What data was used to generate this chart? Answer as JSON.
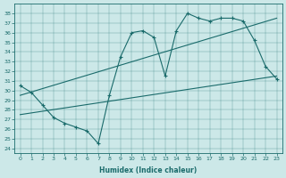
{
  "xlabel": "Humidex (Indice chaleur)",
  "bg_color": "#cce8e8",
  "line_color": "#1a6b6b",
  "xlim": [
    -0.5,
    23.5
  ],
  "ylim": [
    23.5,
    39.0
  ],
  "xticks": [
    0,
    1,
    2,
    3,
    4,
    5,
    6,
    7,
    8,
    9,
    10,
    11,
    12,
    13,
    14,
    15,
    16,
    17,
    18,
    19,
    20,
    21,
    22,
    23
  ],
  "yticks": [
    24,
    25,
    26,
    27,
    28,
    29,
    30,
    31,
    32,
    33,
    34,
    35,
    36,
    37,
    38
  ],
  "line1_marked": {
    "x": [
      0,
      1,
      2,
      3,
      4,
      5,
      6,
      7,
      8,
      9,
      10,
      11,
      12,
      13,
      14,
      15,
      16,
      17,
      18,
      19,
      20,
      21,
      22,
      23
    ],
    "y": [
      30.5,
      29.8,
      28.5,
      27.2,
      26.6,
      26.2,
      25.8,
      24.5,
      29.5,
      33.5,
      36.0,
      36.2,
      35.5,
      31.5,
      36.2,
      38.0,
      37.5,
      37.2,
      37.5,
      37.5,
      37.2,
      35.2,
      32.5,
      31.2
    ]
  },
  "line2_plain": {
    "x": [
      0,
      23
    ],
    "y": [
      29.5,
      37.5
    ]
  },
  "line3_bottom": {
    "x": [
      0,
      23
    ],
    "y": [
      27.5,
      31.5
    ]
  },
  "line4_outline": {
    "x": [
      0,
      2,
      3,
      4,
      5,
      6,
      7,
      8,
      10,
      13,
      15,
      18,
      20,
      21,
      22,
      23
    ],
    "y": [
      30.5,
      28.5,
      27.2,
      26.6,
      26.2,
      25.8,
      24.5,
      29.5,
      36.0,
      31.5,
      38.0,
      37.5,
      37.2,
      35.2,
      32.5,
      31.2
    ]
  }
}
